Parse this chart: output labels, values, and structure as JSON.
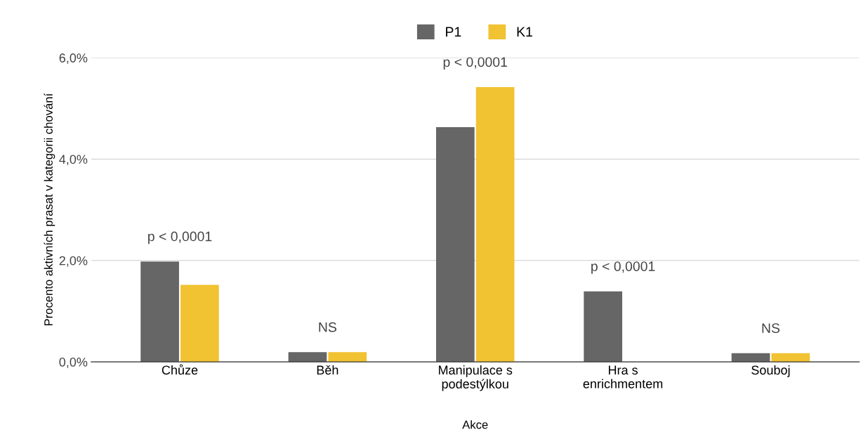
{
  "chart_data": {
    "type": "bar",
    "xlabel": "Akce",
    "ylabel": "Procento aktivních prasat v kategorii chování",
    "categories": [
      "Chůze",
      "Běh",
      "Manipulace s\npodestýlkou",
      "Hra s\nenrichmentem",
      "Souboj"
    ],
    "series": [
      {
        "name": "P1",
        "color": "#666666",
        "values": [
          1.98,
          0.19,
          4.63,
          1.39,
          0.17
        ]
      },
      {
        "name": "K1",
        "color": "#f1c232",
        "values": [
          1.52,
          0.19,
          5.42,
          0,
          0.17
        ]
      }
    ],
    "ylim": [
      0,
      6
    ],
    "yticks": [
      {
        "value": 0,
        "label": "0,0%"
      },
      {
        "value": 2,
        "label": "2,0%"
      },
      {
        "value": 4,
        "label": "4,0%"
      },
      {
        "value": 6,
        "label": "6,0%"
      }
    ],
    "grid": "y",
    "legend": "top",
    "annotations": [
      "p < 0,0001",
      "NS",
      "p < 0,0001",
      "p < 0,0001",
      "NS"
    ]
  }
}
